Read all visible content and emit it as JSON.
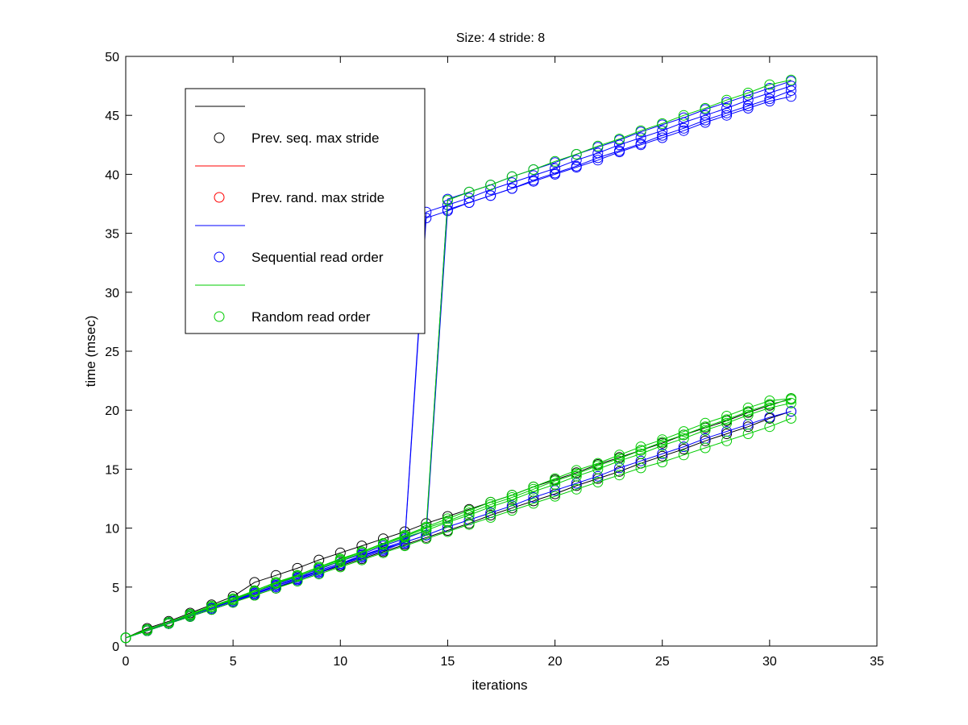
{
  "chart_data": {
    "type": "line",
    "title": "Size: 4 stride: 8",
    "xlabel": "iterations",
    "ylabel": "time (msec)",
    "xlim": [
      0,
      35
    ],
    "ylim": [
      0,
      50
    ],
    "xticks": [
      0,
      5,
      10,
      15,
      20,
      25,
      30,
      35
    ],
    "yticks": [
      0,
      5,
      10,
      15,
      20,
      25,
      30,
      35,
      40,
      45,
      50
    ],
    "grid": false,
    "legend_position": "top-left",
    "legend": [
      {
        "label": "",
        "marker": "line",
        "color": "#000000"
      },
      {
        "label": "Prev. seq. max stride",
        "marker": "circle",
        "color": "#000000"
      },
      {
        "label": "",
        "marker": "line",
        "color": "#ff0000"
      },
      {
        "label": "Prev. rand. max stride",
        "marker": "circle",
        "color": "#ff0000"
      },
      {
        "label": "",
        "marker": "line",
        "color": "#0000ff"
      },
      {
        "label": "Sequential read order",
        "marker": "circle",
        "color": "#0000ff"
      },
      {
        "label": "",
        "marker": "line",
        "color": "#00cc00"
      },
      {
        "label": "Random read order",
        "marker": "circle",
        "color": "#00cc00"
      }
    ],
    "x": [
      0,
      1,
      2,
      3,
      4,
      5,
      6,
      7,
      8,
      9,
      10,
      11,
      12,
      13,
      14,
      15,
      16,
      17,
      18,
      19,
      20,
      21,
      22,
      23,
      24,
      25,
      26,
      27,
      28,
      29,
      30,
      31
    ],
    "series": [
      {
        "color": "#000000",
        "values": [
          0.7,
          1.5,
          2.1,
          2.8,
          3.5,
          4.2,
          5.4,
          6.0,
          6.6,
          7.3,
          7.9,
          8.5,
          9.1,
          9.7,
          10.4,
          11.0,
          11.6,
          12.2,
          12.8,
          13.5,
          14.1,
          14.7,
          15.4,
          16.0,
          16.6,
          17.2,
          17.9,
          18.5,
          19.1,
          19.8,
          20.4,
          21.0
        ]
      },
      {
        "color": "#000000",
        "values": [
          0.7,
          1.3,
          1.9,
          2.5,
          3.1,
          3.7,
          4.3,
          4.9,
          5.6,
          6.2,
          6.8,
          7.4,
          8.0,
          8.6,
          9.2,
          9.8,
          10.4,
          11.1,
          11.7,
          12.3,
          12.9,
          13.6,
          14.2,
          14.8,
          15.5,
          16.1,
          16.7,
          17.4,
          18.0,
          18.6,
          19.3,
          19.9
        ]
      },
      {
        "color": "#0000ff",
        "values": [
          0.7,
          1.3,
          1.9,
          2.6,
          3.2,
          3.8,
          4.5,
          5.1,
          5.7,
          6.4,
          7.0,
          7.7,
          8.3,
          8.7,
          36.3,
          36.9,
          37.6,
          38.2,
          38.8,
          39.5,
          40.1,
          40.7,
          41.4,
          42.0,
          42.6,
          43.3,
          43.9,
          44.6,
          45.2,
          45.8,
          46.4,
          47.1
        ]
      },
      {
        "color": "#0000ff",
        "values": [
          0.7,
          1.4,
          2.0,
          2.6,
          3.2,
          3.9,
          4.5,
          5.1,
          5.8,
          6.4,
          7.0,
          7.6,
          8.3,
          8.9,
          36.8,
          37.4,
          38.0,
          38.7,
          39.3,
          39.9,
          40.5,
          41.2,
          41.8,
          42.5,
          43.1,
          43.7,
          44.4,
          45.0,
          45.6,
          46.3,
          46.9,
          47.5
        ]
      },
      {
        "color": "#0000ff",
        "values": [
          0.7,
          1.3,
          1.9,
          2.5,
          3.1,
          3.7,
          4.4,
          5.0,
          5.6,
          6.2,
          6.9,
          7.5,
          8.1,
          8.8,
          9.4,
          37.0,
          37.6,
          38.2,
          38.8,
          39.4,
          40.0,
          40.6,
          41.2,
          41.9,
          42.5,
          43.1,
          43.7,
          44.4,
          45.0,
          45.6,
          46.2,
          46.6
        ]
      },
      {
        "color": "#0000ff",
        "values": [
          0.7,
          1.3,
          2.0,
          2.6,
          3.3,
          3.9,
          4.6,
          5.2,
          5.9,
          6.5,
          7.2,
          7.8,
          8.5,
          9.1,
          9.8,
          37.9,
          38.5,
          39.1,
          39.8,
          40.4,
          41.0,
          41.7,
          42.3,
          42.9,
          43.6,
          44.2,
          44.8,
          45.5,
          46.1,
          46.7,
          47.3,
          47.9
        ]
      },
      {
        "color": "#0000ff",
        "values": [
          0.7,
          1.3,
          1.9,
          2.6,
          3.2,
          3.8,
          4.4,
          5.1,
          5.7,
          6.3,
          6.9,
          7.6,
          8.2,
          8.8,
          9.4,
          10.1,
          10.7,
          11.3,
          11.9,
          12.6,
          13.2,
          13.8,
          14.4,
          15.1,
          15.7,
          16.3,
          16.9,
          17.6,
          18.2,
          18.8,
          19.4,
          19.9
        ]
      },
      {
        "color": "#00cc00",
        "values": [
          0.7,
          1.4,
          2.0,
          2.7,
          3.4,
          4.0,
          4.7,
          5.4,
          6.0,
          6.7,
          7.3,
          8.0,
          8.7,
          9.3,
          10.0,
          37.8,
          38.5,
          39.1,
          39.8,
          40.4,
          41.1,
          41.7,
          42.4,
          43.0,
          43.7,
          44.3,
          45.0,
          45.6,
          46.3,
          46.9,
          47.6,
          48.0
        ]
      },
      {
        "color": "#00cc00",
        "values": [
          0.7,
          1.4,
          2.0,
          2.6,
          3.3,
          3.9,
          4.6,
          5.3,
          6.0,
          6.7,
          7.4,
          8.0,
          8.7,
          9.4,
          10.1,
          10.8,
          11.5,
          12.2,
          12.8,
          13.5,
          14.2,
          14.9,
          15.5,
          16.2,
          16.9,
          17.5,
          18.2,
          18.9,
          19.5,
          20.2,
          20.8,
          21.0
        ]
      },
      {
        "color": "#00cc00",
        "values": [
          0.7,
          1.3,
          1.9,
          2.5,
          3.1,
          3.7,
          4.3,
          4.9,
          5.5,
          6.1,
          6.7,
          7.3,
          7.9,
          8.5,
          9.1,
          9.7,
          10.3,
          10.9,
          11.5,
          12.1,
          12.7,
          13.3,
          13.9,
          14.5,
          15.1,
          15.6,
          16.2,
          16.8,
          17.4,
          18.0,
          18.6,
          19.3
        ]
      },
      {
        "color": "#00cc00",
        "values": [
          0.7,
          1.4,
          2.0,
          2.7,
          3.3,
          4.0,
          4.6,
          5.3,
          5.9,
          6.6,
          7.2,
          7.9,
          8.6,
          9.2,
          9.8,
          10.5,
          11.1,
          11.8,
          12.4,
          13.1,
          13.7,
          14.4,
          15.0,
          15.7,
          16.3,
          17.0,
          17.6,
          18.3,
          18.9,
          19.6,
          20.2,
          20.6
        ]
      },
      {
        "color": "#00cc00",
        "values": [
          0.7,
          1.4,
          2.0,
          2.7,
          3.3,
          4.0,
          4.7,
          5.4,
          6.0,
          6.7,
          7.3,
          8.0,
          8.7,
          9.3,
          10.0,
          10.6,
          11.3,
          12.0,
          12.6,
          13.3,
          14.0,
          14.6,
          15.3,
          15.9,
          16.6,
          17.3,
          17.9,
          18.6,
          19.2,
          19.9,
          20.5,
          20.9
        ]
      }
    ]
  }
}
